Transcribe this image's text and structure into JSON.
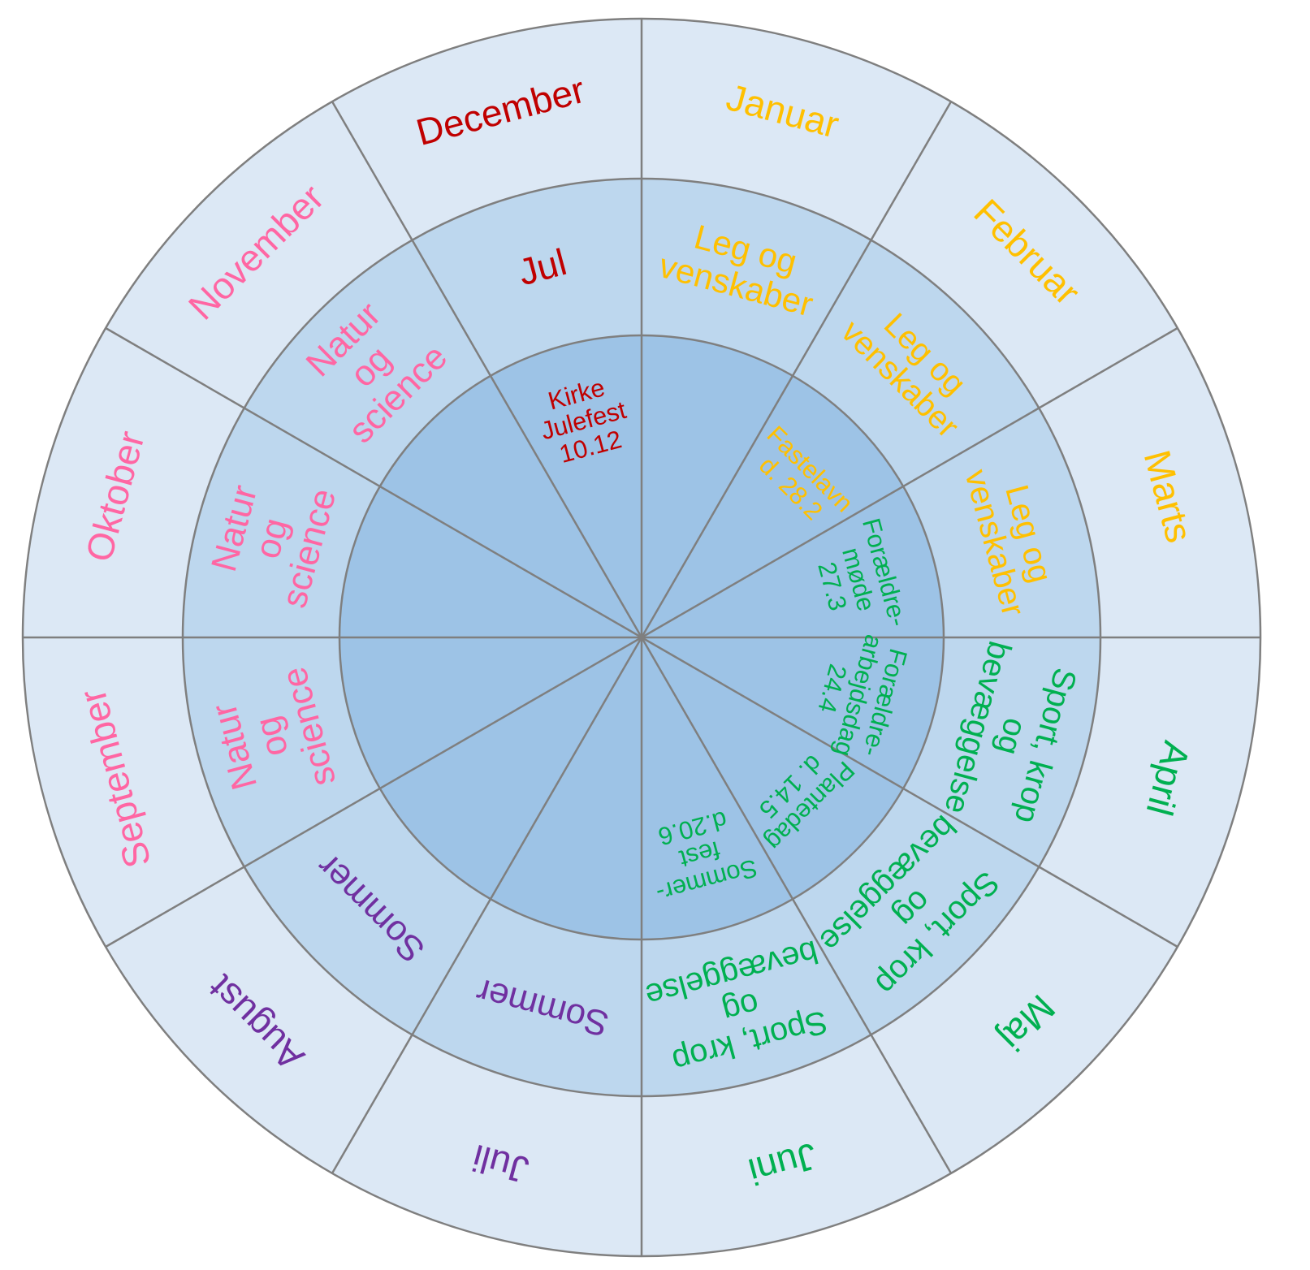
{
  "colors": {
    "outer_ring": "#dce8f5",
    "middle_ring": "#bdd7ee",
    "inner_disc": "#9dc3e6",
    "lines": "#7f7f7f"
  },
  "months": [
    {
      "key": "januar",
      "label": "Januar",
      "color": "#ffc000"
    },
    {
      "key": "februar",
      "label": "Februar",
      "color": "#ffc000"
    },
    {
      "key": "marts",
      "label": "Marts",
      "color": "#ffc000"
    },
    {
      "key": "april",
      "label": "April",
      "color": "#00b050"
    },
    {
      "key": "maj",
      "label": "Maj",
      "color": "#00b050"
    },
    {
      "key": "juni",
      "label": "Juni",
      "color": "#00b050"
    },
    {
      "key": "juli",
      "label": "Juli",
      "color": "#7030a0"
    },
    {
      "key": "august",
      "label": "August",
      "color": "#7030a0"
    },
    {
      "key": "september",
      "label": "September",
      "color": "#ff66a3"
    },
    {
      "key": "oktober",
      "label": "Oktober",
      "color": "#ff66a3"
    },
    {
      "key": "november",
      "label": "November",
      "color": "#ff66a3"
    },
    {
      "key": "december",
      "label": "December",
      "color": "#c00000"
    }
  ],
  "themes": [
    {
      "key": "januar",
      "lines": [
        "Leg og",
        "venskaber"
      ],
      "color": "#ffc000"
    },
    {
      "key": "februar",
      "lines": [
        "Leg og",
        "venskaber"
      ],
      "color": "#ffc000"
    },
    {
      "key": "marts",
      "lines": [
        "Leg og",
        "venskaber"
      ],
      "color": "#ffc000"
    },
    {
      "key": "april",
      "lines": [
        "Sport, krop",
        "og",
        "bevæggelse"
      ],
      "color": "#00b050"
    },
    {
      "key": "maj",
      "lines": [
        "Sport, krop",
        "og",
        "bevæggelse"
      ],
      "color": "#00b050"
    },
    {
      "key": "juni",
      "lines": [
        "Sport, krop",
        "og",
        "bevæggelse"
      ],
      "color": "#00b050"
    },
    {
      "key": "juli",
      "lines": [
        "Sommer"
      ],
      "color": "#7030a0"
    },
    {
      "key": "august",
      "lines": [
        "Sommer"
      ],
      "color": "#7030a0"
    },
    {
      "key": "september",
      "lines": [
        "Natur",
        "og",
        "science"
      ],
      "color": "#ff66a3"
    },
    {
      "key": "oktober",
      "lines": [
        "Natur",
        "og",
        "science"
      ],
      "color": "#ff66a3"
    },
    {
      "key": "november",
      "lines": [
        "Natur",
        "og",
        "science"
      ],
      "color": "#ff66a3"
    },
    {
      "key": "december",
      "lines": [
        "Jul"
      ],
      "color": "#c00000"
    }
  ],
  "events": [
    {
      "key": "januar",
      "lines": [],
      "color": "#ffc000"
    },
    {
      "key": "februar",
      "lines": [
        "Fastelavn",
        "d. 28.2"
      ],
      "color": "#ffc000"
    },
    {
      "key": "marts",
      "lines": [
        "Forældre-",
        "møde",
        "27.3"
      ],
      "color": "#00b050"
    },
    {
      "key": "april",
      "lines": [
        "Forældre-",
        "arbejdsdag",
        "24.4"
      ],
      "color": "#00b050"
    },
    {
      "key": "maj",
      "lines": [
        "Plantedag",
        "d. 14.5"
      ],
      "color": "#00b050"
    },
    {
      "key": "juni",
      "lines": [
        "Sommer-",
        "fest",
        "d.20.6"
      ],
      "color": "#00b050"
    },
    {
      "key": "juli",
      "lines": [],
      "color": "#00b050"
    },
    {
      "key": "august",
      "lines": [],
      "color": "#00b050"
    },
    {
      "key": "september",
      "lines": [],
      "color": "#00b050"
    },
    {
      "key": "oktober",
      "lines": [],
      "color": "#00b050"
    },
    {
      "key": "november",
      "lines": [],
      "color": "#00b050"
    },
    {
      "key": "december",
      "lines": [
        "Kirke",
        "Julefest",
        "10.12"
      ],
      "color": "#c00000"
    }
  ]
}
